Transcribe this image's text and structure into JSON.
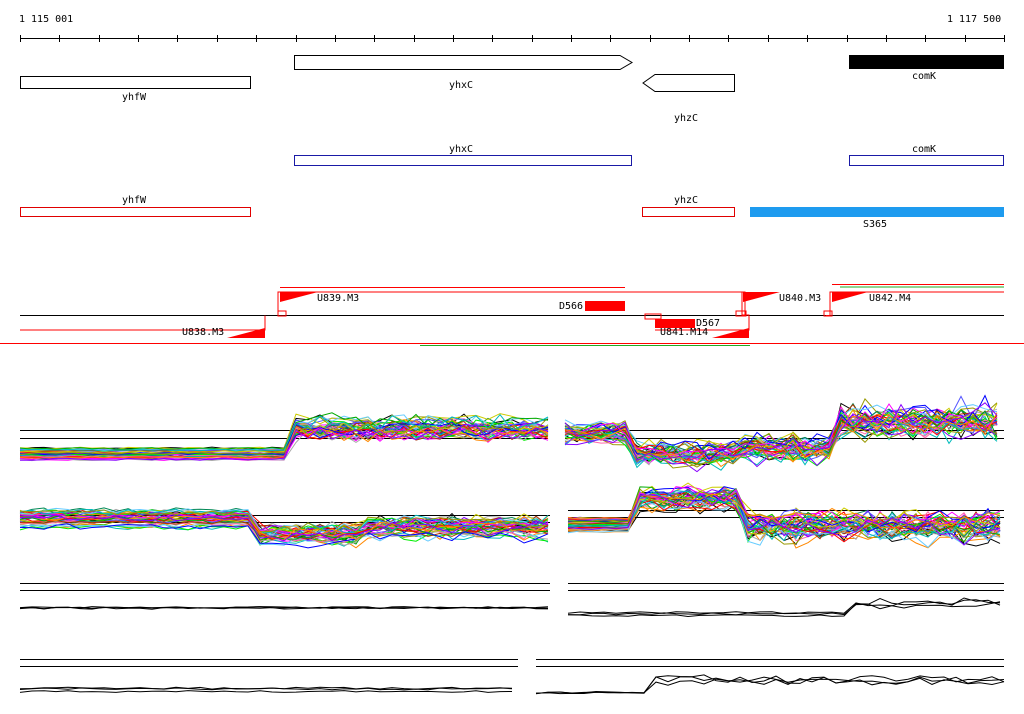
{
  "ruler": {
    "start_label": "1 115 001",
    "end_label": "1 117 500"
  },
  "genes": [
    {
      "id": "yhfW",
      "label": "yhfW",
      "strand": "plus"
    },
    {
      "id": "yhxC",
      "label": "yhxC",
      "strand": "plus"
    },
    {
      "id": "yhzC",
      "label": "yhzC",
      "strand": "minus"
    },
    {
      "id": "comK",
      "label": "comK",
      "strand": "plus"
    }
  ],
  "annotation_track_blue": [
    {
      "label": "yhxC"
    },
    {
      "label": "comK"
    }
  ],
  "annotation_track_red": [
    {
      "label": "yhfW"
    },
    {
      "label": "yhzC"
    },
    {
      "label": "S365"
    }
  ],
  "segments": [
    {
      "label": "U839.M3"
    },
    {
      "label": "D566"
    },
    {
      "label": "U840.M3"
    },
    {
      "label": "U842.M4"
    },
    {
      "label": "U838.M3"
    },
    {
      "label": "D567"
    },
    {
      "label": "U841.M14"
    }
  ],
  "colors": {
    "gene_fill_filled": "#000000",
    "blue_track": "#1a1aa6",
    "red_track": "#e00000",
    "highlight_feature": "#1e9bef",
    "segment_red": "#ff0000",
    "green_line": "#22aa22"
  }
}
